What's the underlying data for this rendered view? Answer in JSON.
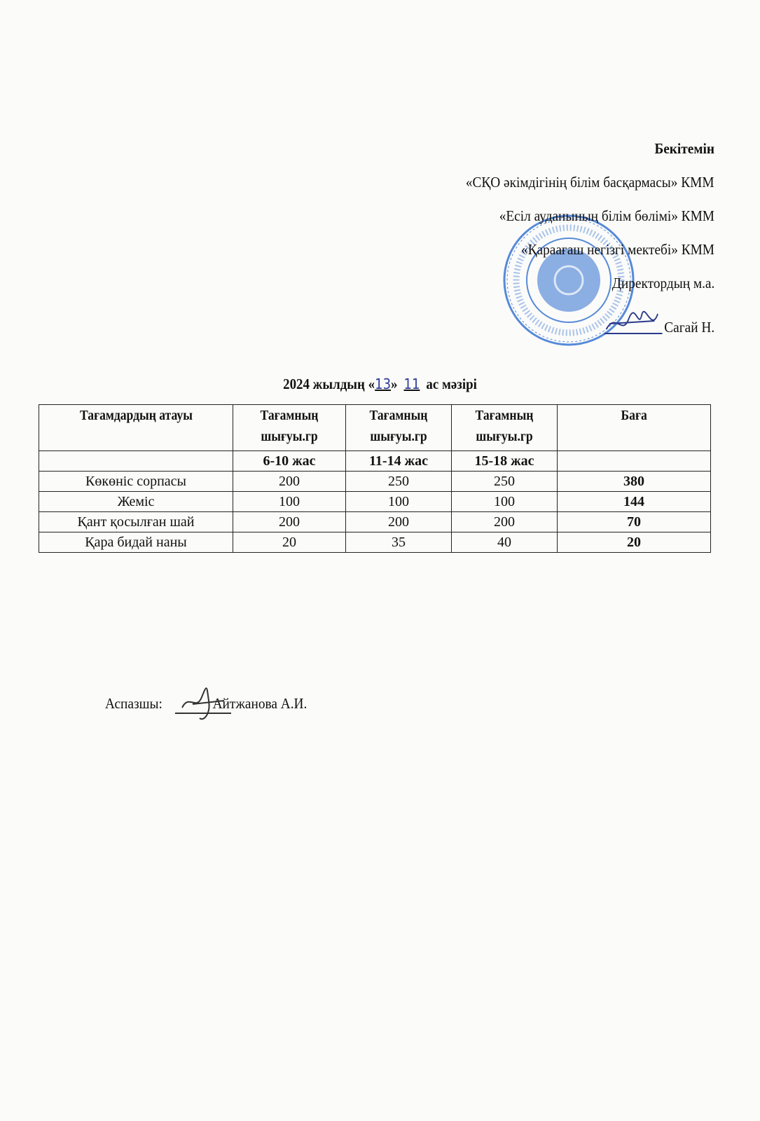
{
  "approval": {
    "heading": "Бекітемін",
    "lines": [
      "«СҚО әкімдігінің білім басқармасы» КММ",
      "«Есіл ауданының білім  бөлімі» КММ",
      "«Қараағаш негізгі мектебі» КММ",
      "Директордың м.а."
    ],
    "signer": "Сагай Н."
  },
  "stamp": {
    "color": "#2f6fd0"
  },
  "menu_title": {
    "prefix": "2024 жылдың «",
    "day": "13",
    "mid": "»",
    "month": "11",
    "suffix": "ас мәзірі"
  },
  "table": {
    "headers": [
      "Тағамдардың атауы",
      "Тағамның шығуы.гр",
      "Тағамның шығуы.гр",
      "Тағамның шығуы.гр",
      "Баға"
    ],
    "age_groups": [
      "",
      "6-10 жас",
      "11-14 жас",
      "15-18 жас",
      ""
    ],
    "rows": [
      [
        "Көкөніс сорпасы",
        "200",
        "250",
        "250",
        "380"
      ],
      [
        "Жеміс",
        "100",
        "100",
        "100",
        "144"
      ],
      [
        "Қант қосылған шай",
        "200",
        "200",
        "200",
        "70"
      ],
      [
        "Қара бидай наны",
        "20",
        "35",
        "40",
        "20"
      ]
    ]
  },
  "cook": {
    "label": "Аспазшы:",
    "name": "Айтжанова А.И."
  }
}
